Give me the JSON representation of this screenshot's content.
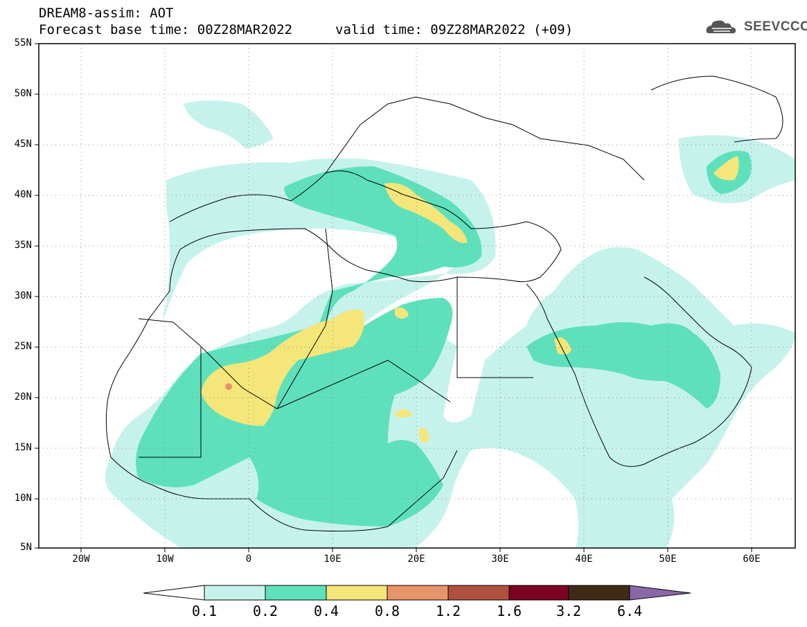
{
  "header": {
    "line1": "DREAM8-assim: AOT",
    "line2": "Forecast base time: 00Z28MAR2022",
    "line3": "valid time: 09Z28MAR2022 (+09)"
  },
  "logo": {
    "text": "SEEVCCC",
    "icon": "cloud-icon"
  },
  "map": {
    "projection": "lat-lon",
    "lon_range": [
      -25,
      65
    ],
    "lat_range": [
      5,
      55
    ],
    "grid": "dotted",
    "lat_ticks": [
      "55N",
      "50N",
      "45N",
      "40N",
      "35N",
      "30N",
      "25N",
      "20N",
      "15N",
      "10N",
      "5N"
    ],
    "lon_ticks": [
      "20W",
      "10W",
      "0",
      "10E",
      "20E",
      "30E",
      "40E",
      "50E",
      "60E"
    ]
  },
  "colorbar": {
    "labels": [
      "0.1",
      "0.2",
      "0.4",
      "0.8",
      "1.2",
      "1.6",
      "3.2",
      "6.4"
    ],
    "colors": [
      "#ffffff",
      "#c6f2ec",
      "#5ee1bb",
      "#f5e67a",
      "#e8946a",
      "#b0503e",
      "#7c0021",
      "#3e2a16",
      "#8a68a8"
    ]
  }
}
